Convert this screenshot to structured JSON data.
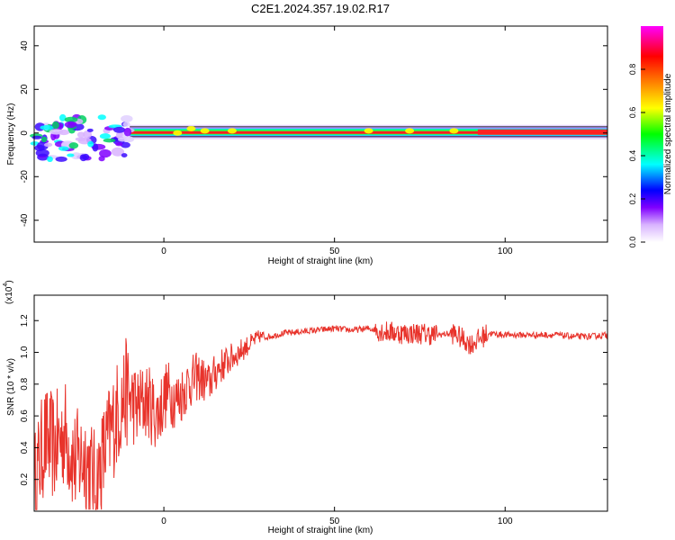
{
  "title": "C2E1.2024.357.19.02.R17",
  "chart_data": [
    {
      "type": "heatmap",
      "xlabel": "Height of straight line (km)",
      "ylabel": "Frequency (Hz)",
      "xlim": [
        -38,
        130
      ],
      "ylim": [
        -50,
        49
      ],
      "x_ticks": [
        "0",
        "50",
        "100"
      ],
      "x_tick_values": [
        0,
        50,
        100
      ],
      "y_ticks": [
        "40",
        "20",
        "0",
        "-20",
        "-40"
      ],
      "y_tick_values": [
        40,
        20,
        0,
        -20,
        -40
      ],
      "colorbar": {
        "label": "Normalized spectral amplitude",
        "range": [
          0,
          1
        ],
        "ticks": [
          "0.0",
          "0.2",
          "0.4",
          "0.6",
          "0.8"
        ],
        "tick_values": [
          0.0,
          0.2,
          0.4,
          0.6,
          0.8
        ],
        "colors": [
          "#ffffff",
          "#d9b3ff",
          "#8000ff",
          "#0000ff",
          "#00ffff",
          "#00ff00",
          "#ffff00",
          "#ff8000",
          "#ff0000",
          "#ff00ff"
        ]
      },
      "band": {
        "center_hz": 1,
        "note": "Narrow high-amplitude band near 0–2 Hz from about -10 km to 130 km; broad noisy content between -38 and -10 km."
      }
    },
    {
      "type": "line",
      "xlabel": "Height of straight line (km)",
      "ylabel": "SNR (10 * v/v)",
      "y_multiplier": "(x10",
      "y_multiplier_exp": "4",
      "xlim": [
        -38,
        130
      ],
      "ylim": [
        0,
        1.36
      ],
      "x_ticks": [
        "0",
        "50",
        "100"
      ],
      "x_tick_values": [
        0,
        50,
        100
      ],
      "y_ticks": [
        "0.2",
        "0.4",
        "0.6",
        "0.8",
        "1.0",
        "1.2"
      ],
      "y_tick_values": [
        0.2,
        0.4,
        0.6,
        0.8,
        1.0,
        1.2
      ],
      "color": "#e8332b",
      "series": [
        {
          "x": [
            -38,
            -35,
            -32,
            -29,
            -26,
            -23,
            -20,
            -17,
            -14,
            -11,
            -8,
            -5,
            -2,
            1,
            4,
            7,
            10,
            13,
            16,
            19,
            22,
            25,
            28,
            31,
            35,
            40,
            45,
            50,
            55,
            60,
            65,
            70,
            75,
            80,
            85,
            90,
            95,
            100,
            105,
            110,
            115,
            120,
            125,
            130
          ],
          "values": [
            0.15,
            0.45,
            0.4,
            0.5,
            0.3,
            0.35,
            0.15,
            0.4,
            0.6,
            0.75,
            0.65,
            0.7,
            0.6,
            0.75,
            0.7,
            0.8,
            0.85,
            0.8,
            0.9,
            0.95,
            1.0,
            1.05,
            1.1,
            1.1,
            1.12,
            1.13,
            1.14,
            1.15,
            1.14,
            1.15,
            1.13,
            1.12,
            1.12,
            1.11,
            1.12,
            1.05,
            1.12,
            1.11,
            1.11,
            1.11,
            1.11,
            1.1,
            1.1,
            1.11
          ]
        }
      ]
    }
  ]
}
